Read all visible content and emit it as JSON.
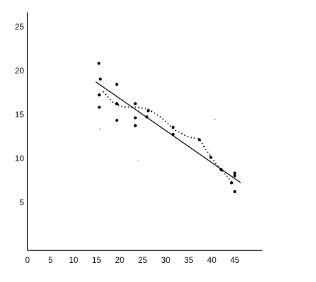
{
  "chart_data": {
    "type": "scatter",
    "xlim": [
      0,
      51
    ],
    "ylim": [
      -0.4,
      26.7
    ],
    "xticks": [
      0,
      5,
      10,
      15,
      20,
      25,
      30,
      35,
      40,
      45
    ],
    "yticks": [
      5,
      10,
      15,
      20,
      25
    ],
    "series": [
      {
        "color": "#000000",
        "size": 2.2,
        "x": [
          15.5,
          15.8,
          15.6,
          15.6,
          19.4,
          19.4,
          19.4,
          23.4,
          23.4,
          23.4,
          26.2,
          25.9,
          31.6,
          31.6,
          37.3,
          39.8,
          42.0,
          44.3,
          45.0,
          45.0,
          45.0
        ],
        "values": [
          20.9,
          19.1,
          17.3,
          15.9,
          18.5,
          16.3,
          14.4,
          16.3,
          14.7,
          13.8,
          15.5,
          14.8,
          12.8,
          13.6,
          12.2,
          10.2,
          8.8,
          7.3,
          8.4,
          8.1,
          6.3
        ]
      },
      {
        "color": "#555555",
        "size": 0.7,
        "x": [
          15.6,
          24.0,
          40.7
        ],
        "values": [
          13.4,
          9.8,
          14.5
        ]
      }
    ],
    "trend": {
      "color": "#000000",
      "x": [
        14.8,
        46.3
      ],
      "values": [
        18.8,
        7.3
      ]
    },
    "smooth": {
      "color": "#000000",
      "x": [
        16.4,
        18.6,
        20.9,
        23.8,
        26.2,
        29.1,
        32.0,
        35.0,
        37.3,
        38.7,
        41.0,
        43.2,
        44.7
      ],
      "values": [
        17.7,
        16.4,
        15.9,
        15.9,
        15.7,
        14.7,
        13.3,
        12.5,
        12.3,
        11.1,
        9.4,
        8.1,
        7.2
      ]
    }
  }
}
